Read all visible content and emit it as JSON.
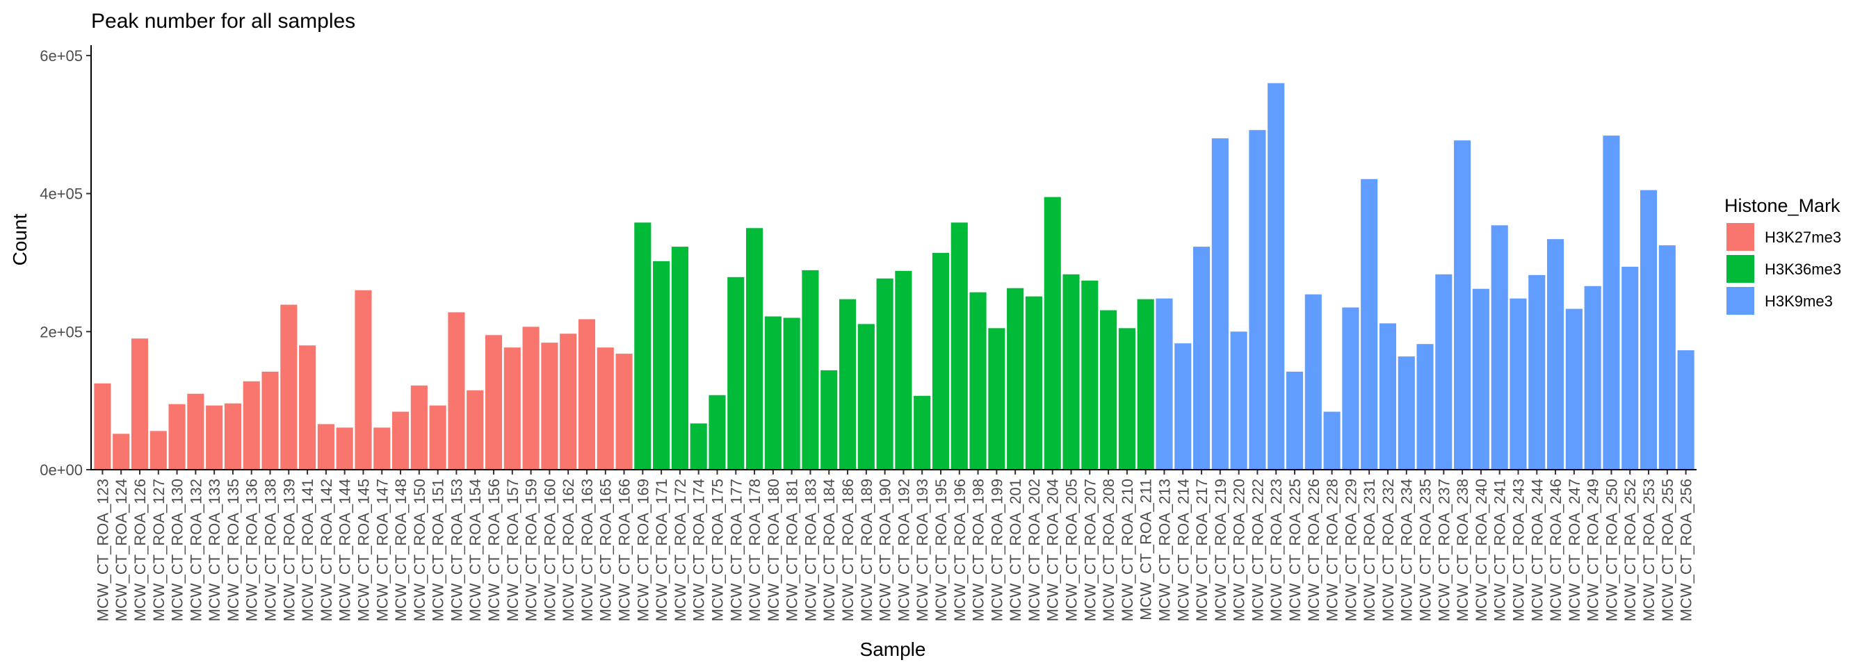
{
  "chart_data": {
    "type": "bar",
    "title": "Peak number for all samples",
    "xlabel": "Sample",
    "ylabel": "Count",
    "ylim": [
      0,
      615000
    ],
    "yticks": [
      0,
      200000,
      400000,
      600000
    ],
    "ytick_labels": [
      "0e+00",
      "2e+05",
      "4e+05",
      "6e+05"
    ],
    "grid": false,
    "legend": {
      "title": "Histone_Mark",
      "placement": "right",
      "entries": [
        {
          "label": "H3K27me3",
          "color": "#F8766D"
        },
        {
          "label": "H3K36me3",
          "color": "#00BA38"
        },
        {
          "label": "H3K9me3",
          "color": "#619CFF"
        }
      ]
    },
    "categories": [
      "MCW_CT_ROA_123",
      "MCW_CT_ROA_124",
      "MCW_CT_ROA_126",
      "MCW_CT_ROA_127",
      "MCW_CT_ROA_130",
      "MCW_CT_ROA_132",
      "MCW_CT_ROA_133",
      "MCW_CT_ROA_135",
      "MCW_CT_ROA_136",
      "MCW_CT_ROA_138",
      "MCW_CT_ROA_139",
      "MCW_CT_ROA_141",
      "MCW_CT_ROA_142",
      "MCW_CT_ROA_144",
      "MCW_CT_ROA_145",
      "MCW_CT_ROA_147",
      "MCW_CT_ROA_148",
      "MCW_CT_ROA_150",
      "MCW_CT_ROA_151",
      "MCW_CT_ROA_153",
      "MCW_CT_ROA_154",
      "MCW_CT_ROA_156",
      "MCW_CT_ROA_157",
      "MCW_CT_ROA_159",
      "MCW_CT_ROA_160",
      "MCW_CT_ROA_162",
      "MCW_CT_ROA_163",
      "MCW_CT_ROA_165",
      "MCW_CT_ROA_166",
      "MCW_CT_ROA_169",
      "MCW_CT_ROA_171",
      "MCW_CT_ROA_172",
      "MCW_CT_ROA_174",
      "MCW_CT_ROA_175",
      "MCW_CT_ROA_177",
      "MCW_CT_ROA_178",
      "MCW_CT_ROA_180",
      "MCW_CT_ROA_181",
      "MCW_CT_ROA_183",
      "MCW_CT_ROA_184",
      "MCW_CT_ROA_186",
      "MCW_CT_ROA_189",
      "MCW_CT_ROA_190",
      "MCW_CT_ROA_192",
      "MCW_CT_ROA_193",
      "MCW_CT_ROA_195",
      "MCW_CT_ROA_196",
      "MCW_CT_ROA_198",
      "MCW_CT_ROA_199",
      "MCW_CT_ROA_201",
      "MCW_CT_ROA_202",
      "MCW_CT_ROA_204",
      "MCW_CT_ROA_205",
      "MCW_CT_ROA_207",
      "MCW_CT_ROA_208",
      "MCW_CT_ROA_210",
      "MCW_CT_ROA_211",
      "MCW_CT_ROA_213",
      "MCW_CT_ROA_214",
      "MCW_CT_ROA_217",
      "MCW_CT_ROA_219",
      "MCW_CT_ROA_220",
      "MCW_CT_ROA_222",
      "MCW_CT_ROA_223",
      "MCW_CT_ROA_225",
      "MCW_CT_ROA_226",
      "MCW_CT_ROA_228",
      "MCW_CT_ROA_229",
      "MCW_CT_ROA_231",
      "MCW_CT_ROA_232",
      "MCW_CT_ROA_234",
      "MCW_CT_ROA_235",
      "MCW_CT_ROA_237",
      "MCW_CT_ROA_238",
      "MCW_CT_ROA_240",
      "MCW_CT_ROA_241",
      "MCW_CT_ROA_243",
      "MCW_CT_ROA_244",
      "MCW_CT_ROA_246",
      "MCW_CT_ROA_247",
      "MCW_CT_ROA_249",
      "MCW_CT_ROA_250",
      "MCW_CT_ROA_252",
      "MCW_CT_ROA_253",
      "MCW_CT_ROA_255",
      "MCW_CT_ROA_256"
    ],
    "values": [
      125000,
      52000,
      190000,
      56000,
      95000,
      110000,
      93000,
      96000,
      128000,
      142000,
      239000,
      180000,
      66000,
      61000,
      260000,
      61000,
      84000,
      122000,
      93000,
      228000,
      115000,
      195000,
      177000,
      207000,
      184000,
      197000,
      218000,
      177000,
      168000,
      358000,
      302000,
      323000,
      67000,
      108000,
      279000,
      350000,
      222000,
      220000,
      289000,
      144000,
      247000,
      211000,
      277000,
      288000,
      107000,
      314000,
      358000,
      257000,
      205000,
      263000,
      251000,
      395000,
      283000,
      274000,
      231000,
      205000,
      247000,
      248000,
      183000,
      323000,
      480000,
      200000,
      492000,
      560000,
      142000,
      254000,
      84000,
      235000,
      421000,
      212000,
      164000,
      182000,
      283000,
      477000,
      262000,
      354000,
      248000,
      282000,
      334000,
      233000,
      266000,
      484000,
      294000,
      405000,
      325000,
      173000
    ],
    "groups": [
      "H3K27me3",
      "H3K27me3",
      "H3K27me3",
      "H3K27me3",
      "H3K27me3",
      "H3K27me3",
      "H3K27me3",
      "H3K27me3",
      "H3K27me3",
      "H3K27me3",
      "H3K27me3",
      "H3K27me3",
      "H3K27me3",
      "H3K27me3",
      "H3K27me3",
      "H3K27me3",
      "H3K27me3",
      "H3K27me3",
      "H3K27me3",
      "H3K27me3",
      "H3K27me3",
      "H3K27me3",
      "H3K27me3",
      "H3K27me3",
      "H3K27me3",
      "H3K27me3",
      "H3K27me3",
      "H3K27me3",
      "H3K27me3",
      "H3K36me3",
      "H3K36me3",
      "H3K36me3",
      "H3K36me3",
      "H3K36me3",
      "H3K36me3",
      "H3K36me3",
      "H3K36me3",
      "H3K36me3",
      "H3K36me3",
      "H3K36me3",
      "H3K36me3",
      "H3K36me3",
      "H3K36me3",
      "H3K36me3",
      "H3K36me3",
      "H3K36me3",
      "H3K36me3",
      "H3K36me3",
      "H3K36me3",
      "H3K36me3",
      "H3K36me3",
      "H3K36me3",
      "H3K36me3",
      "H3K36me3",
      "H3K36me3",
      "H3K36me3",
      "H3K36me3",
      "H3K9me3",
      "H3K9me3",
      "H3K9me3",
      "H3K9me3",
      "H3K9me3",
      "H3K9me3",
      "H3K9me3",
      "H3K9me3",
      "H3K9me3",
      "H3K9me3",
      "H3K9me3",
      "H3K9me3",
      "H3K9me3",
      "H3K9me3",
      "H3K9me3",
      "H3K9me3",
      "H3K9me3",
      "H3K9me3",
      "H3K9me3",
      "H3K9me3",
      "H3K9me3",
      "H3K9me3",
      "H3K9me3",
      "H3K9me3",
      "H3K9me3",
      "H3K9me3",
      "H3K9me3",
      "H3K9me3",
      "H3K9me3"
    ]
  }
}
